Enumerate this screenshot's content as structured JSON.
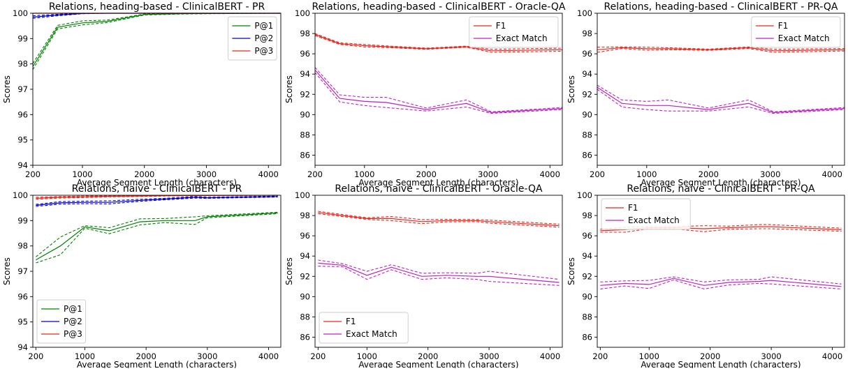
{
  "chart_data": [
    {
      "type": "line",
      "title": "Relations, heading-based - ClinicalBERT - PR",
      "xlabel": "Average Segment Length (characters)",
      "ylabel": "Scores",
      "xlim": [
        200,
        4200
      ],
      "ylim": [
        94,
        100
      ],
      "xticks": [
        200,
        1000,
        2000,
        3000,
        4000
      ],
      "yticks": [
        94,
        95,
        96,
        97,
        98,
        99,
        100
      ],
      "legend": "top-right",
      "series": [
        {
          "name": "P@1",
          "color": "#008000",
          "x": [
            200,
            600,
            1000,
            1400,
            2000,
            2600,
            3000,
            4200
          ],
          "y": [
            97.9,
            99.45,
            99.62,
            99.68,
            99.95,
            99.98,
            99.99,
            100.0
          ],
          "band": [
            0.12,
            0.07,
            0.08,
            0.05,
            0.02,
            0.01,
            0.01,
            0.0
          ]
        },
        {
          "name": "P@2",
          "color": "#0000cc",
          "x": [
            200,
            600,
            1000,
            1400,
            2000,
            2600,
            3000,
            4200
          ],
          "y": [
            99.85,
            99.93,
            99.99,
            100.0,
            100.0,
            100.0,
            100.0,
            100.0
          ],
          "band": [
            0.05,
            0.03,
            0.01,
            0.0,
            0.0,
            0.0,
            0.0,
            0.0
          ]
        },
        {
          "name": "P@3",
          "color": "#e8281e",
          "x": [
            200,
            600,
            1000,
            1400,
            2000,
            2600,
            3000,
            4200
          ],
          "y": [
            100.0,
            100.0,
            100.0,
            100.0,
            100.0,
            100.0,
            100.0,
            100.0
          ],
          "band": [
            0,
            0,
            0,
            0,
            0,
            0,
            0,
            0
          ]
        }
      ]
    },
    {
      "type": "line",
      "title": "Relations, heading-based - ClinicalBERT - Oracle-QA",
      "xlabel": "Average Segment Length (characters)",
      "ylabel": "Scores",
      "xlim": [
        200,
        4200
      ],
      "ylim": [
        85,
        100
      ],
      "xticks": [
        200,
        1000,
        2000,
        3000,
        4000
      ],
      "yticks": [
        86,
        88,
        90,
        92,
        94,
        96,
        98,
        100
      ],
      "legend": "top-right",
      "series": [
        {
          "name": "F1",
          "color": "#e8281e",
          "x": [
            200,
            600,
            1000,
            1350,
            2000,
            2650,
            3050,
            4200
          ],
          "y": [
            97.9,
            97.0,
            96.8,
            96.7,
            96.5,
            96.7,
            96.3,
            96.4
          ],
          "band": [
            0.1,
            0.08,
            0.12,
            0.08,
            0.06,
            0.06,
            0.15,
            0.15
          ]
        },
        {
          "name": "Exact Match",
          "color": "#c020c0",
          "x": [
            200,
            600,
            1000,
            1350,
            2000,
            2650,
            3050,
            4200
          ],
          "y": [
            94.4,
            91.6,
            91.3,
            91.2,
            90.5,
            91.1,
            90.2,
            90.6
          ],
          "band": [
            0.25,
            0.35,
            0.4,
            0.5,
            0.15,
            0.35,
            0.08,
            0.1
          ]
        }
      ]
    },
    {
      "type": "line",
      "title": "Relations, heading-based - ClinicalBERT - PR-QA",
      "xlabel": "Average Segment Length (characters)",
      "ylabel": "Scores",
      "xlim": [
        200,
        4200
      ],
      "ylim": [
        85,
        100
      ],
      "xticks": [
        200,
        1000,
        2000,
        3000,
        4000
      ],
      "yticks": [
        86,
        88,
        90,
        92,
        94,
        96,
        98,
        100
      ],
      "legend": "top-right",
      "series": [
        {
          "name": "F1",
          "color": "#e8281e",
          "x": [
            200,
            600,
            1000,
            1350,
            2000,
            2650,
            3050,
            4200
          ],
          "y": [
            96.4,
            96.6,
            96.5,
            96.5,
            96.4,
            96.6,
            96.3,
            96.4
          ],
          "band": [
            0.25,
            0.08,
            0.15,
            0.1,
            0.06,
            0.08,
            0.15,
            0.12
          ]
        },
        {
          "name": "Exact Match",
          "color": "#c020c0",
          "x": [
            200,
            600,
            1000,
            1350,
            2000,
            2650,
            3050,
            4200
          ],
          "y": [
            92.7,
            91.1,
            90.9,
            90.9,
            90.5,
            91.1,
            90.2,
            90.6
          ],
          "band": [
            0.2,
            0.35,
            0.4,
            0.55,
            0.15,
            0.35,
            0.08,
            0.1
          ]
        }
      ]
    },
    {
      "type": "line",
      "title": "Relations, naive - ClinicalBERT - PR",
      "xlabel": "Average Segment Length (characters)",
      "ylabel": "Scores",
      "xlim": [
        150,
        4200
      ],
      "ylim": [
        94,
        100
      ],
      "xticks": [
        200,
        1000,
        2000,
        3000,
        4000
      ],
      "yticks": [
        94,
        95,
        96,
        97,
        98,
        99,
        100
      ],
      "legend": "bottom-left",
      "series": [
        {
          "name": "P@1",
          "color": "#008000",
          "x": [
            200,
            600,
            1000,
            1400,
            1900,
            2300,
            2800,
            3000,
            4150
          ],
          "y": [
            97.45,
            98.0,
            98.75,
            98.6,
            98.95,
            99.0,
            99.0,
            99.15,
            99.3
          ],
          "band": [
            0.12,
            0.35,
            0.05,
            0.12,
            0.12,
            0.08,
            0.15,
            0.04,
            0.03
          ]
        },
        {
          "name": "P@2",
          "color": "#0000cc",
          "x": [
            200,
            600,
            1000,
            1400,
            1900,
            2300,
            2800,
            3000,
            4150
          ],
          "y": [
            99.6,
            99.7,
            99.72,
            99.72,
            99.8,
            99.85,
            99.92,
            99.9,
            99.95
          ],
          "band": [
            0.04,
            0.05,
            0.05,
            0.06,
            0.04,
            0.03,
            0.03,
            0.02,
            0.02
          ]
        },
        {
          "name": "P@3",
          "color": "#e8281e",
          "x": [
            200,
            600,
            1000,
            1400,
            1900,
            2300,
            2800,
            3000,
            4150
          ],
          "y": [
            99.88,
            99.92,
            99.94,
            99.96,
            99.97,
            99.98,
            99.99,
            99.99,
            100.0
          ],
          "band": [
            0.04,
            0.03,
            0.03,
            0.02,
            0.02,
            0.01,
            0.01,
            0.01,
            0.0
          ]
        }
      ]
    },
    {
      "type": "line",
      "title": "Relations, naive - ClinicalBERT - Oracle-QA",
      "xlabel": "Average Segment Length (characters)",
      "ylabel": "Scores",
      "xlim": [
        150,
        4200
      ],
      "ylim": [
        85,
        100
      ],
      "xticks": [
        200,
        1000,
        2000,
        3000,
        4000
      ],
      "yticks": [
        86,
        88,
        90,
        92,
        94,
        96,
        98,
        100
      ],
      "legend": "bottom-left",
      "series": [
        {
          "name": "F1",
          "color": "#e8281e",
          "x": [
            200,
            600,
            1000,
            1400,
            1900,
            2300,
            2800,
            3000,
            4150
          ],
          "y": [
            98.3,
            98.0,
            97.7,
            97.7,
            97.4,
            97.5,
            97.5,
            97.4,
            97.0
          ],
          "band": [
            0.12,
            0.1,
            0.08,
            0.2,
            0.2,
            0.12,
            0.1,
            0.15,
            0.15
          ]
        },
        {
          "name": "Exact Match",
          "color": "#c020c0",
          "x": [
            200,
            600,
            1000,
            1400,
            1900,
            2300,
            2800,
            3000,
            4150
          ],
          "y": [
            93.3,
            93.1,
            92.1,
            92.9,
            92.0,
            92.1,
            92.0,
            92.0,
            91.4
          ],
          "band": [
            0.3,
            0.15,
            0.4,
            0.25,
            0.3,
            0.25,
            0.3,
            0.5,
            0.3
          ]
        }
      ]
    },
    {
      "type": "line",
      "title": "Relations, naive - ClinicalBERT - PR-QA",
      "xlabel": "Average Segment Length (characters)",
      "ylabel": "Scores",
      "xlim": [
        150,
        4200
      ],
      "ylim": [
        85,
        100
      ],
      "xticks": [
        200,
        1000,
        2000,
        3000,
        4000
      ],
      "yticks": [
        86,
        88,
        90,
        92,
        94,
        96,
        98,
        100
      ],
      "legend": "top-left",
      "series": [
        {
          "name": "F1",
          "color": "#e8281e",
          "x": [
            200,
            600,
            1000,
            1400,
            1900,
            2300,
            2800,
            3000,
            4150
          ],
          "y": [
            96.5,
            96.6,
            96.8,
            96.8,
            96.7,
            96.8,
            96.9,
            96.9,
            96.6
          ],
          "band": [
            0.15,
            0.25,
            0.1,
            0.1,
            0.3,
            0.15,
            0.2,
            0.2,
            0.15
          ]
        },
        {
          "name": "Exact Match",
          "color": "#c020c0",
          "x": [
            200,
            600,
            1000,
            1400,
            1900,
            2300,
            2800,
            3000,
            4150
          ],
          "y": [
            91.1,
            91.3,
            91.2,
            91.8,
            91.1,
            91.4,
            91.5,
            91.6,
            91.0
          ],
          "band": [
            0.35,
            0.25,
            0.4,
            0.15,
            0.35,
            0.25,
            0.2,
            0.35,
            0.25
          ]
        }
      ]
    }
  ]
}
